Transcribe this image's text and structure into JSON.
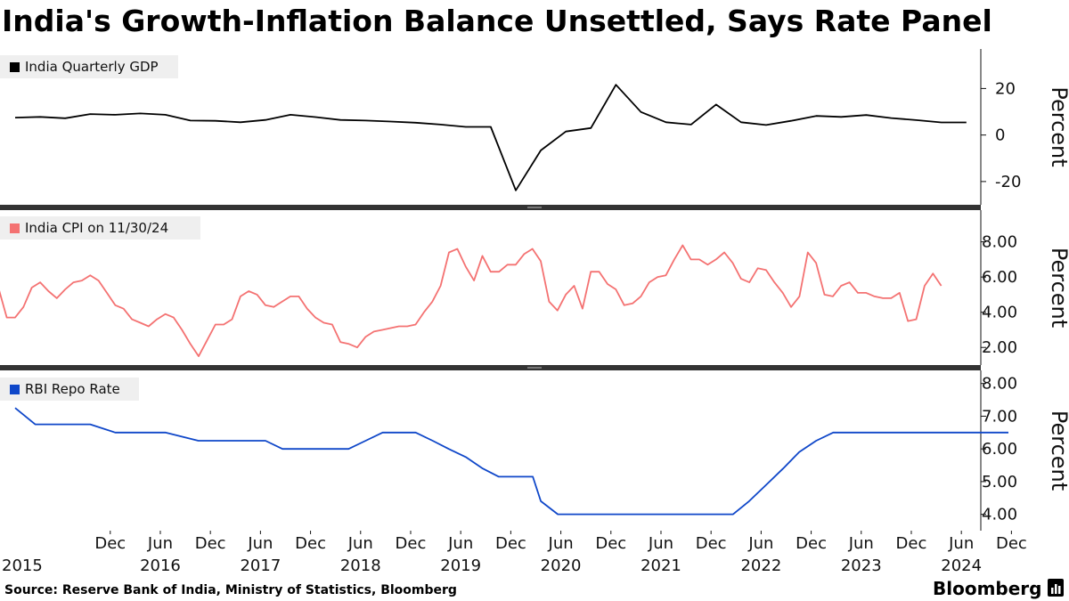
{
  "title": "India's Growth-Inflation Balance Unsettled, Says Rate Panel",
  "source": "Source: Reserve Bank of India, Ministry of Statistics, Bloomberg",
  "brand": "Bloomberg",
  "chart_data": [
    {
      "type": "line",
      "name": "India Quarterly GDP",
      "color": "#000000",
      "ylabel": "Percent",
      "ylim": [
        -30,
        37
      ],
      "yticks": [
        20,
        0,
        -20
      ],
      "ytick_labels": [
        "20",
        "0",
        "-20"
      ],
      "x": [
        2015.0,
        2015.25,
        2015.5,
        2015.75,
        2016.0,
        2016.25,
        2016.5,
        2016.75,
        2017.0,
        2017.25,
        2017.5,
        2017.75,
        2018.0,
        2018.25,
        2018.5,
        2018.75,
        2019.0,
        2019.25,
        2019.5,
        2019.75,
        2020.0,
        2020.25,
        2020.5,
        2020.75,
        2021.0,
        2021.25,
        2021.5,
        2021.75,
        2022.0,
        2022.25,
        2022.5,
        2022.75,
        2023.0,
        2023.25,
        2023.5,
        2023.75,
        2024.0,
        2024.25,
        2024.5
      ],
      "values": [
        7.5,
        7.8,
        7.2,
        9.0,
        8.7,
        9.3,
        8.7,
        6.2,
        6.1,
        5.5,
        6.5,
        8.7,
        7.7,
        6.5,
        6.2,
        5.8,
        5.3,
        4.5,
        3.5,
        3.5,
        -23.8,
        -6.6,
        1.5,
        3.0,
        21.6,
        9.9,
        5.5,
        4.5,
        13.1,
        5.5,
        4.3,
        6.1,
        8.2,
        7.8,
        8.6,
        7.3,
        6.4,
        5.4,
        5.4
      ]
    },
    {
      "type": "line",
      "name": "India CPI on 11/30/24",
      "color": "#f47272",
      "ylabel": "Percent",
      "ylim": [
        1.0,
        9.8
      ],
      "yticks": [
        8,
        6,
        4,
        2
      ],
      "ytick_labels": [
        "8.00",
        "6.00",
        "4.00",
        "2.00"
      ],
      "x_start": 2014.833,
      "x_step": 0.08333,
      "values": [
        5.4,
        3.7,
        3.7,
        4.3,
        5.4,
        5.7,
        5.2,
        4.8,
        5.3,
        5.7,
        5.8,
        6.1,
        5.8,
        5.1,
        4.4,
        4.2,
        3.6,
        3.4,
        3.2,
        3.6,
        3.9,
        3.7,
        3.0,
        2.2,
        1.5,
        2.4,
        3.3,
        3.3,
        3.6,
        4.9,
        5.2,
        5.0,
        4.4,
        4.3,
        4.6,
        4.9,
        4.9,
        4.2,
        3.7,
        3.4,
        3.3,
        2.3,
        2.2,
        2.0,
        2.6,
        2.9,
        3.0,
        3.1,
        3.2,
        3.2,
        3.3,
        4.0,
        4.6,
        5.5,
        7.4,
        7.6,
        6.6,
        5.8,
        7.2,
        6.3,
        6.3,
        6.7,
        6.7,
        7.3,
        7.6,
        6.9,
        4.6,
        4.1,
        5.0,
        5.5,
        4.2,
        6.3,
        6.3,
        5.6,
        5.3,
        4.4,
        4.5,
        4.9,
        5.7,
        6.0,
        6.1,
        7.0,
        7.8,
        7.0,
        7.0,
        6.7,
        7.0,
        7.4,
        6.8,
        5.9,
        5.7,
        6.5,
        6.4,
        5.7,
        5.1,
        4.3,
        4.9,
        7.4,
        6.8,
        5.0,
        4.9,
        5.5,
        5.7,
        5.1,
        5.1,
        4.9,
        4.8,
        4.8,
        5.1,
        3.5,
        3.6,
        5.5,
        6.2,
        5.5
      ]
    },
    {
      "type": "line",
      "name": "RBI Repo Rate",
      "color": "#0f47c9",
      "ylabel": "Percent",
      "ylim": [
        3.5,
        8.4
      ],
      "yticks": [
        8,
        7,
        6,
        5,
        4
      ],
      "ytick_labels": [
        "8.00",
        "7.00",
        "6.00",
        "5.00",
        "4.00"
      ],
      "x": [
        2015.0,
        2015.2,
        2015.75,
        2016.0,
        2016.33,
        2016.5,
        2016.83,
        2017.5,
        2017.67,
        2018.33,
        2018.5,
        2018.67,
        2019.0,
        2019.17,
        2019.33,
        2019.5,
        2019.67,
        2019.83,
        2020.17,
        2020.25,
        2020.42,
        2022.17,
        2022.33,
        2022.5,
        2022.67,
        2022.83,
        2023.0,
        2023.17,
        2024.92
      ],
      "values": [
        7.25,
        6.75,
        6.75,
        6.5,
        6.5,
        6.5,
        6.25,
        6.25,
        6.0,
        6.0,
        6.25,
        6.5,
        6.5,
        6.25,
        6.0,
        5.75,
        5.4,
        5.15,
        5.15,
        4.4,
        4.0,
        4.0,
        4.4,
        4.9,
        5.4,
        5.9,
        6.25,
        6.5,
        6.5
      ]
    }
  ],
  "x_axis": {
    "ticks": [
      {
        "x": 2015.95,
        "label": "Dec",
        "year": "2015"
      },
      {
        "x": 2016.45,
        "label": "Jun",
        "year": "2016"
      },
      {
        "x": 2016.95,
        "label": "Dec",
        "year": ""
      },
      {
        "x": 2017.45,
        "label": "Jun",
        "year": "2017"
      },
      {
        "x": 2017.95,
        "label": "Dec",
        "year": ""
      },
      {
        "x": 2018.45,
        "label": "Jun",
        "year": "2018"
      },
      {
        "x": 2018.95,
        "label": "Dec",
        "year": ""
      },
      {
        "x": 2019.45,
        "label": "Jun",
        "year": "2019"
      },
      {
        "x": 2019.95,
        "label": "Dec",
        "year": ""
      },
      {
        "x": 2020.45,
        "label": "Jun",
        "year": "2020"
      },
      {
        "x": 2020.95,
        "label": "Dec",
        "year": ""
      },
      {
        "x": 2021.45,
        "label": "Jun",
        "year": "2021"
      },
      {
        "x": 2021.95,
        "label": "Dec",
        "year": ""
      },
      {
        "x": 2022.45,
        "label": "Jun",
        "year": "2022"
      },
      {
        "x": 2022.95,
        "label": "Dec",
        "year": ""
      },
      {
        "x": 2023.45,
        "label": "Jun",
        "year": "2023"
      },
      {
        "x": 2023.95,
        "label": "Dec",
        "year": ""
      },
      {
        "x": 2024.45,
        "label": "Jun",
        "year": "2024"
      },
      {
        "x": 2024.95,
        "label": "Dec",
        "year": ""
      }
    ],
    "first_year_label": "2015"
  }
}
